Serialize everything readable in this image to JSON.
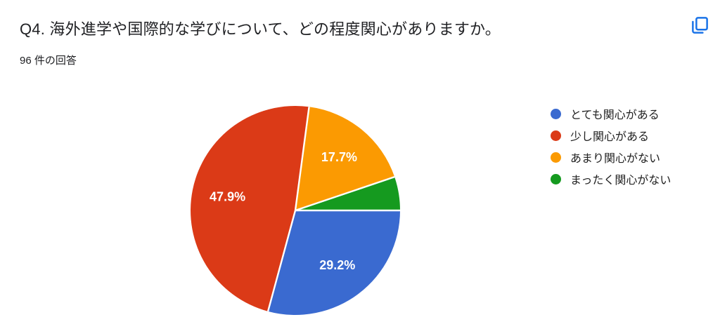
{
  "header": {
    "title": "Q4. 海外進学や国際的な学びについて、どの程度関心がありますか。",
    "response_count": "96 件の回答",
    "copy_button": {
      "icon": "copy-icon",
      "color": "#1a73e8"
    }
  },
  "chart_data": {
    "type": "pie",
    "title": "",
    "legend_position": "right",
    "start_angle": "3-oclock",
    "direction": "clockwise",
    "slice_label_color": "#ffffff",
    "slice_divider_color": "#ffffff",
    "series": [
      {
        "label": "とても関心がある",
        "percent": 29.2,
        "slice_label": "29.2%",
        "color": "#3a6ad0"
      },
      {
        "label": "少し関心がある",
        "percent": 47.9,
        "slice_label": "47.9%",
        "color": "#db3a17"
      },
      {
        "label": "あまり関心がない",
        "percent": 17.7,
        "slice_label": "17.7%",
        "color": "#fb9a02"
      },
      {
        "label": "まったく関心がない",
        "percent": 5.2,
        "slice_label": "",
        "color": "#159a1f"
      }
    ]
  }
}
